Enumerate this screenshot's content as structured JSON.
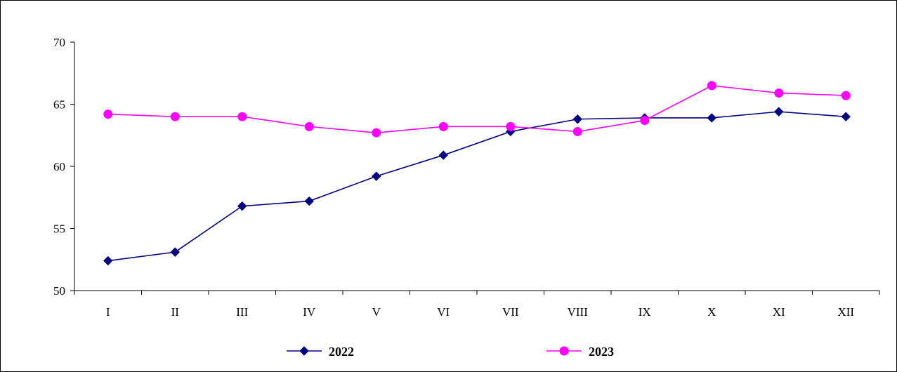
{
  "chart_data": {
    "type": "line",
    "categories": [
      "I",
      "II",
      "III",
      "IV",
      "V",
      "VI",
      "VII",
      "VIII",
      "IX",
      "X",
      "XI",
      "XII"
    ],
    "ylim": [
      50,
      70
    ],
    "yticks": [
      50,
      55,
      60,
      65,
      70
    ],
    "grid": false,
    "legend_position": "bottom",
    "series": [
      {
        "name": "2022",
        "color": "#000080",
        "marker": "diamond",
        "values": [
          52.4,
          53.1,
          56.8,
          57.2,
          59.2,
          60.9,
          62.8,
          63.8,
          63.9,
          63.9,
          64.4,
          64.0
        ]
      },
      {
        "name": "2023",
        "color": "#ff00ff",
        "marker": "circle",
        "values": [
          64.2,
          64.0,
          64.0,
          63.2,
          62.7,
          63.2,
          63.2,
          62.8,
          63.7,
          66.5,
          65.9,
          65.7
        ]
      }
    ]
  }
}
